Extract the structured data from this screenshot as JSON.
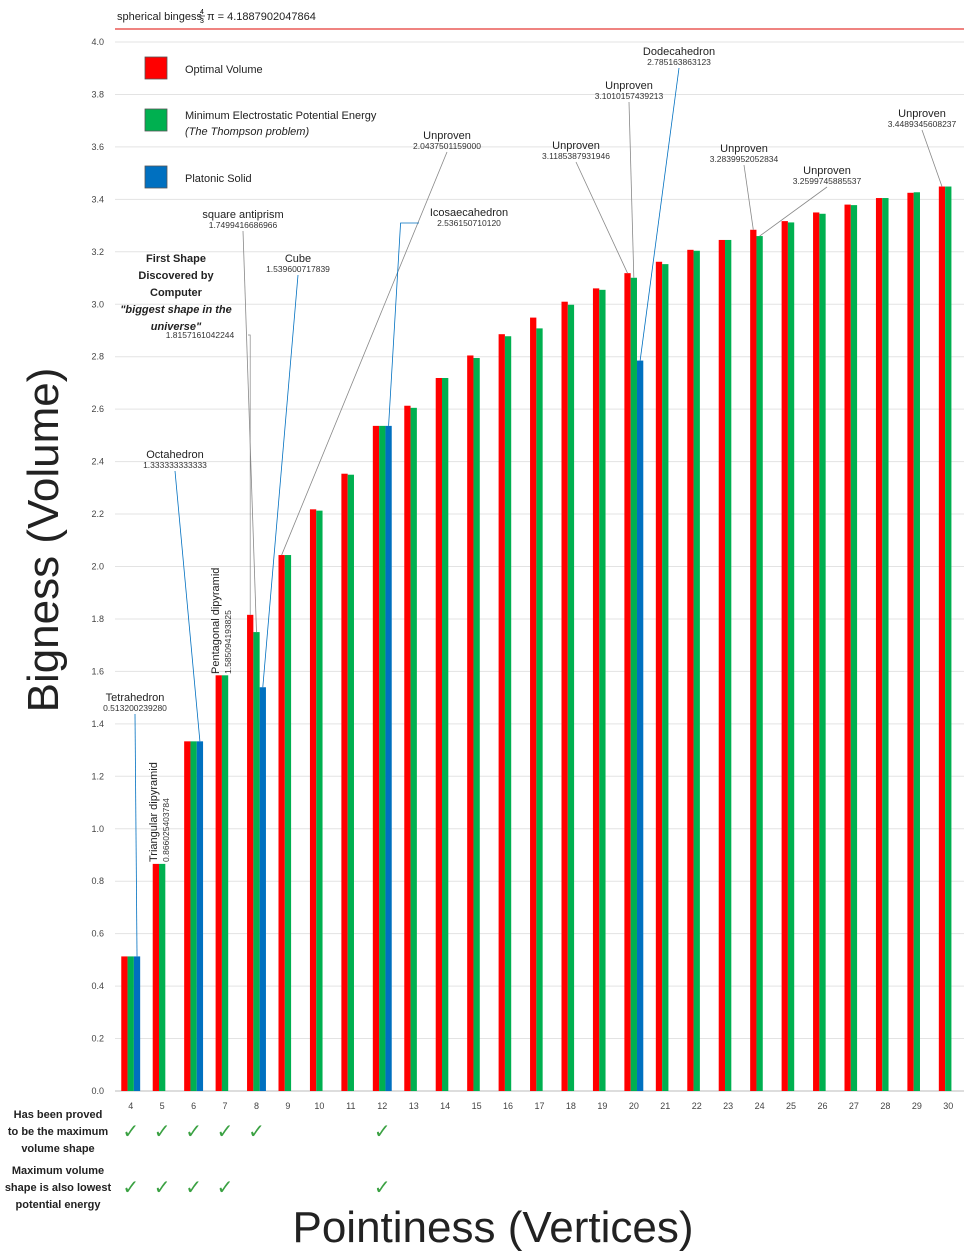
{
  "chart_data": {
    "type": "bar",
    "xlabel": "Pointiness (Vertices)",
    "ylabel": "Bigness (Volume)",
    "ylim": [
      0,
      4.0
    ],
    "ytick_step": 0.2,
    "reference_line": {
      "label": "spherical bingess",
      "symbol": "π",
      "value_text": "= 4.1887902047864",
      "value": 4.1887902047864,
      "color": "#e53935"
    },
    "categories": [
      "4",
      "5",
      "6",
      "7",
      "8",
      "9",
      "10",
      "11",
      "12",
      "13",
      "14",
      "15",
      "16",
      "17",
      "18",
      "19",
      "20",
      "21",
      "22",
      "23",
      "24",
      "25",
      "26",
      "27",
      "28",
      "29",
      "30"
    ],
    "series": [
      {
        "name": "Optimal Volume",
        "color": "#ff0000",
        "values": [
          0.5132,
          0.866,
          1.3333,
          1.5851,
          1.8157,
          2.0437,
          2.218,
          2.3538,
          2.5362,
          2.613,
          2.7188,
          2.8047,
          2.8858,
          2.9491,
          3.0097,
          3.0605,
          3.1186,
          3.162,
          3.2076,
          3.2452,
          3.284,
          3.317,
          3.35,
          3.38,
          3.405,
          3.425,
          3.4489
        ]
      },
      {
        "name": "Minimum Electrostatic Potential Energy",
        "name_note": "(The Thompson problem)",
        "color": "#00b050",
        "values": [
          0.5132,
          0.866,
          1.3333,
          1.5851,
          1.7499,
          2.0437,
          2.213,
          2.35,
          2.5362,
          2.605,
          2.7188,
          2.795,
          2.878,
          2.908,
          2.998,
          3.055,
          3.101,
          3.153,
          3.204,
          3.2452,
          3.26,
          3.312,
          3.345,
          3.378,
          3.405,
          3.427,
          3.4489
        ]
      },
      {
        "name": "Platonic Solid",
        "color": "#0070c0",
        "values": [
          0.5132,
          null,
          1.3333,
          null,
          1.5396,
          null,
          null,
          null,
          2.5362,
          null,
          null,
          null,
          null,
          null,
          null,
          null,
          2.7852,
          null,
          null,
          null,
          null,
          null,
          null,
          null,
          null,
          null,
          null
        ]
      }
    ],
    "legend": "top-left",
    "annotations": [
      {
        "title": "Tetrahedron",
        "value": "0.513200239280",
        "cat": "4",
        "series": 2,
        "rot": false
      },
      {
        "title": "Triangular dipyramid",
        "value": "0.866025403784",
        "cat": "5",
        "series": 0,
        "rot": true
      },
      {
        "title": "Octahedron",
        "value": "1.333333333333",
        "cat": "6",
        "series": 2,
        "rot": false
      },
      {
        "title": "Pentagonal dipyramid",
        "value": "1.585094193825",
        "cat": "7",
        "series": 0,
        "rot": true
      },
      {
        "title_lines": [
          "First Shape",
          "Discovered by",
          "Computer",
          "\"biggest shape in the",
          "universe\""
        ],
        "value": "1.8157161042244",
        "cat": "8",
        "series": 0,
        "rot": false
      },
      {
        "title": "square antiprism",
        "value": "1.7499416686966",
        "cat": "8",
        "series": 1,
        "rot": false
      },
      {
        "title": "Cube",
        "value": "1.539600717839",
        "cat": "8",
        "series": 2,
        "rot": false
      },
      {
        "title": "Unproven",
        "value": "2.0437501159000",
        "cat": "9",
        "series": 0,
        "rot": false
      },
      {
        "title": "Icosaecahedron",
        "value": "2.536150710120",
        "cat": "12",
        "series": 2,
        "rot": false
      },
      {
        "title": "Unproven",
        "value": "3.1185387931946",
        "cat": "20",
        "series": 0,
        "rot": false
      },
      {
        "title": "Unproven",
        "value": "3.1010157439213",
        "cat": "20",
        "series": 1,
        "rot": false
      },
      {
        "title": "Dodecahedron",
        "value": "2.785163863123",
        "cat": "20",
        "series": 2,
        "rot": false
      },
      {
        "title": "Unproven",
        "value": "3.2839952052834",
        "cat": "24",
        "series": 0,
        "rot": false
      },
      {
        "title": "Unproven",
        "value": "3.2599745885537",
        "cat": "24",
        "series": 1,
        "rot": false
      },
      {
        "title": "Unproven",
        "value": "3.4489345608237",
        "cat": "30",
        "series": 0,
        "rot": false
      }
    ]
  },
  "footer_rows": [
    {
      "label_lines": [
        "Has been proved",
        "to be the maximum",
        "volume shape"
      ],
      "check_cats": [
        "4",
        "5",
        "6",
        "7",
        "8",
        "12"
      ]
    },
    {
      "label_lines": [
        "Maximum volume",
        "shape is also lowest",
        "potential energy"
      ],
      "check_cats": [
        "4",
        "5",
        "6",
        "7",
        "12"
      ]
    }
  ],
  "check_symbol": "✓"
}
